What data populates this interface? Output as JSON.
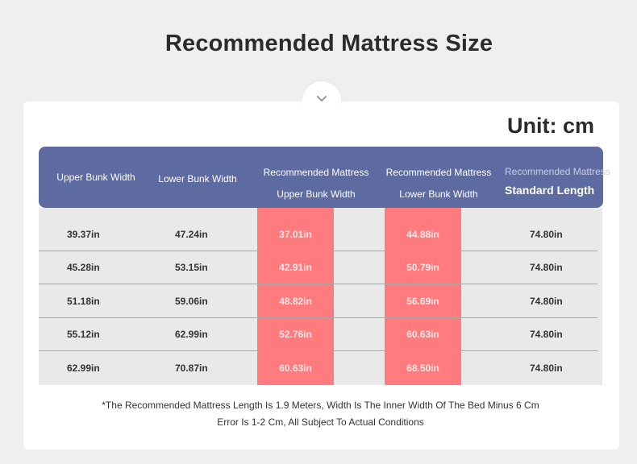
{
  "page": {
    "title": "Recommended Mattress Size",
    "unit": "Unit: cm"
  },
  "table": {
    "headers": {
      "upper_bunk_width": "Upper Bunk Width",
      "lower_bunk_width": "Lower Bunk Width",
      "rec_upper_line1": "Recommended Mattress",
      "rec_upper_line2": "Upper Bunk Width",
      "rec_lower_line1": "Recommended Mattress",
      "rec_lower_line2": "Lower Bunk Width",
      "rec_length_line1": "Recommended Mattress",
      "rec_length_line2": "Standard Length"
    },
    "rows": [
      [
        "39.37in",
        "47.24in",
        "37.01in",
        "44.88in",
        "74.80in"
      ],
      [
        "45.28in",
        "53.15in",
        "42.91in",
        "50.79in",
        "74.80in"
      ],
      [
        "51.18in",
        "59.06in",
        "48.82in",
        "56.69in",
        "74.80in"
      ],
      [
        "55.12in",
        "62.99in",
        "52.76in",
        "60.63in",
        "74.80in"
      ],
      [
        "62.99in",
        "70.87in",
        "60.63in",
        "68.50in",
        "74.80in"
      ]
    ]
  },
  "footnote": {
    "line1": "*The Recommended Mattress Length Is 1.9 Meters, Width Is The Inner Width Of The Bed Minus 6 Cm",
    "line2": "Error Is 1-2 Cm, All Subject To Actual Conditions"
  },
  "icons": {
    "tab": "chevron-down-icon"
  },
  "colors": {
    "header_bg": "#5d6ba0",
    "highlight": "#ff7b7e",
    "body_bg": "#e9e9e9"
  }
}
